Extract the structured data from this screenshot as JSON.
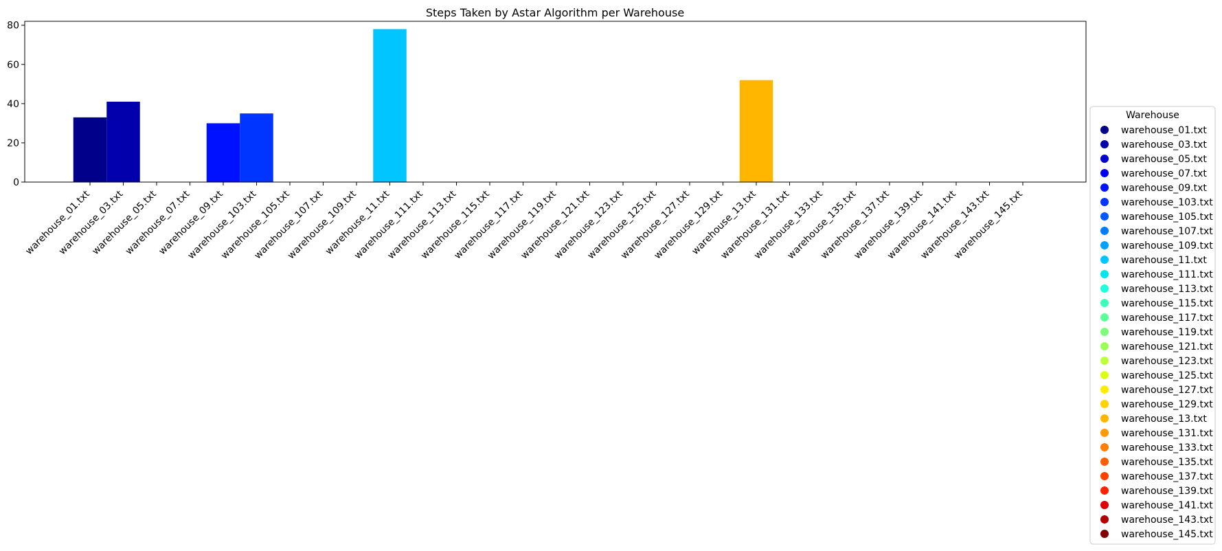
{
  "chart_data": {
    "type": "bar",
    "title": "Steps Taken by Astar Algorithm per Warehouse",
    "xlabel": "",
    "ylabel": "",
    "ylim": [
      0,
      82
    ],
    "yticks": [
      0,
      20,
      40,
      60,
      80
    ],
    "categories": [
      "warehouse_01.txt",
      "warehouse_03.txt",
      "warehouse_05.txt",
      "warehouse_07.txt",
      "warehouse_09.txt",
      "warehouse_103.txt",
      "warehouse_105.txt",
      "warehouse_107.txt",
      "warehouse_109.txt",
      "warehouse_11.txt",
      "warehouse_111.txt",
      "warehouse_113.txt",
      "warehouse_115.txt",
      "warehouse_117.txt",
      "warehouse_119.txt",
      "warehouse_121.txt",
      "warehouse_123.txt",
      "warehouse_125.txt",
      "warehouse_127.txt",
      "warehouse_129.txt",
      "warehouse_13.txt",
      "warehouse_131.txt",
      "warehouse_133.txt",
      "warehouse_135.txt",
      "warehouse_137.txt",
      "warehouse_139.txt",
      "warehouse_141.txt",
      "warehouse_143.txt",
      "warehouse_145.txt"
    ],
    "values": [
      33,
      41,
      0,
      0,
      30,
      35,
      0,
      0,
      0,
      78,
      0,
      0,
      0,
      0,
      0,
      0,
      0,
      0,
      0,
      0,
      52,
      0,
      0,
      0,
      0,
      0,
      0,
      0,
      0
    ],
    "colors": [
      "#00008b",
      "#0000ad",
      "#0000cf",
      "#0000f1",
      "#0011ff",
      "#0035ff",
      "#0059ff",
      "#007dff",
      "#00a1ff",
      "#00c5ff",
      "#00e5f0",
      "#1cffda",
      "#3cffba",
      "#5cff9a",
      "#7cff7a",
      "#9cff5a",
      "#bcff3a",
      "#dcff1a",
      "#ffec00",
      "#ffd300",
      "#ffb600",
      "#ff9900",
      "#ff7d00",
      "#ff5e00",
      "#ff3f00",
      "#ff2200",
      "#e00000",
      "#b10000",
      "#800000"
    ],
    "legend": {
      "title": "Warehouse",
      "position": "right",
      "entries": [
        "warehouse_01.txt",
        "warehouse_03.txt",
        "warehouse_05.txt",
        "warehouse_07.txt",
        "warehouse_09.txt",
        "warehouse_103.txt",
        "warehouse_105.txt",
        "warehouse_107.txt",
        "warehouse_109.txt",
        "warehouse_11.txt",
        "warehouse_111.txt",
        "warehouse_113.txt",
        "warehouse_115.txt",
        "warehouse_117.txt",
        "warehouse_119.txt",
        "warehouse_121.txt",
        "warehouse_123.txt",
        "warehouse_125.txt",
        "warehouse_127.txt",
        "warehouse_129.txt",
        "warehouse_13.txt",
        "warehouse_131.txt",
        "warehouse_133.txt",
        "warehouse_135.txt",
        "warehouse_137.txt",
        "warehouse_139.txt",
        "warehouse_141.txt",
        "warehouse_143.txt",
        "warehouse_145.txt"
      ]
    }
  }
}
